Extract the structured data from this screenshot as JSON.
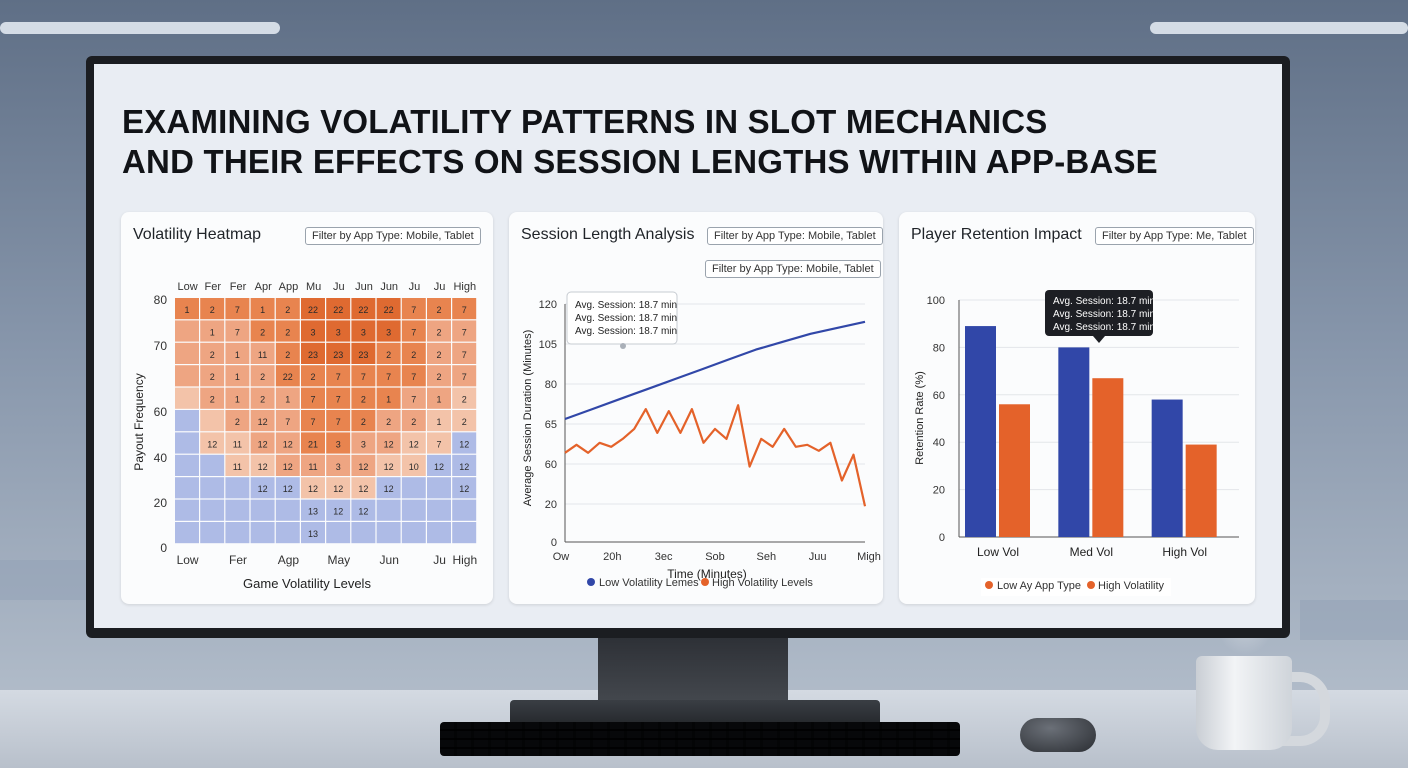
{
  "page": {
    "title_line1": "EXAMINING VOLATILITY PATTERNS IN SLOT MECHANICS",
    "title_line2": "AND THEIR EFFECTS ON SESSION LENGTHS WITHIN APP-BASE"
  },
  "colors": {
    "blue": "#3147a8",
    "orange": "#e4622a",
    "accent_low": "#aebbe6",
    "accent_high": "#e8763b"
  },
  "chart_data": [
    {
      "type": "heatmap",
      "title": "Volatility Heatmap",
      "filter": "Filter by App Type: Mobile, Tablet",
      "xlabel": "Game Volatility Levels",
      "ylabel": "Payout Frequency",
      "x_top": [
        "Low",
        "Fer",
        "Fer",
        "Apr",
        "App",
        "Mu",
        "Ju",
        "Jun",
        "Jun",
        "Ju",
        "Ju",
        "High"
      ],
      "x_bottom": [
        "Low",
        "Fer",
        "Agp",
        "May",
        "Jun",
        "Ju",
        "High"
      ],
      "y_ticks": [
        "80",
        "70",
        "60",
        "40",
        "20",
        "0"
      ],
      "rows": [
        [
          "1",
          "2",
          "7",
          "1",
          "2",
          "22",
          "22",
          "22",
          "22",
          "7",
          "2",
          "7"
        ],
        [
          "",
          "1",
          "7",
          "2",
          "2",
          "3",
          "3",
          "3",
          "3",
          "7",
          "2",
          "7"
        ],
        [
          "",
          "2",
          "1",
          "11",
          "2",
          "23",
          "23",
          "23",
          "2",
          "2",
          "2",
          "7"
        ],
        [
          "",
          "2",
          "1",
          "2",
          "22",
          "2",
          "7",
          "7",
          "7",
          "7",
          "2",
          "7"
        ],
        [
          "",
          "2",
          "1",
          "2",
          "1",
          "7",
          "7",
          "2",
          "1",
          "7",
          "1",
          "2"
        ],
        [
          "",
          "",
          "2",
          "12",
          "7",
          "7",
          "7",
          "2",
          "2",
          "2",
          "1",
          "2"
        ],
        [
          "",
          "12",
          "11",
          "12",
          "12",
          "21",
          "3",
          "3",
          "12",
          "12",
          "7",
          "12"
        ],
        [
          "",
          "",
          "11",
          "12",
          "12",
          "11",
          "3",
          "12",
          "12",
          "10",
          "12",
          "12"
        ],
        [
          "",
          "",
          "",
          "12",
          "12",
          "12",
          "12",
          "12",
          "12",
          "",
          "",
          "12"
        ],
        [
          "",
          "",
          "",
          "",
          "",
          "13",
          "12",
          "12",
          "",
          "",
          "",
          ""
        ],
        [
          "",
          "",
          "",
          "",
          "",
          "13",
          "",
          "",
          "",
          "",
          "",
          ""
        ]
      ],
      "levels": [
        [
          3,
          3,
          3,
          3,
          3,
          4,
          4,
          4,
          4,
          3,
          3,
          3
        ],
        [
          2,
          2,
          2,
          3,
          3,
          4,
          4,
          4,
          4,
          3,
          2,
          2
        ],
        [
          2,
          2,
          2,
          2,
          3,
          4,
          4,
          4,
          3,
          3,
          2,
          2
        ],
        [
          2,
          2,
          2,
          2,
          3,
          3,
          3,
          3,
          3,
          3,
          2,
          2
        ],
        [
          1,
          2,
          2,
          2,
          2,
          3,
          3,
          3,
          3,
          2,
          2,
          1
        ],
        [
          0,
          1,
          2,
          2,
          2,
          3,
          3,
          3,
          2,
          2,
          1,
          1
        ],
        [
          0,
          1,
          1,
          2,
          2,
          3,
          3,
          2,
          2,
          1,
          1,
          0
        ],
        [
          0,
          0,
          1,
          1,
          2,
          2,
          2,
          2,
          1,
          1,
          0,
          0
        ],
        [
          0,
          0,
          0,
          0,
          0,
          1,
          1,
          1,
          0,
          0,
          0,
          0
        ],
        [
          0,
          0,
          0,
          0,
          0,
          0,
          0,
          0,
          0,
          0,
          0,
          0
        ],
        [
          0,
          0,
          0,
          0,
          0,
          0,
          0,
          0,
          0,
          0,
          0,
          0
        ]
      ]
    },
    {
      "type": "line",
      "title": "Session Length Analysis",
      "filter": "Filter by App Type: Mobile, Tablet",
      "filter2": "Filter by App Type: Mobile, Tablet",
      "xlabel": "Time (Minutes)",
      "ylabel": "Average Session Duration (Minutes)",
      "x_ticks": [
        "Ow",
        "20h",
        "3ec",
        "Sob",
        "Seh",
        "Juu",
        "Migh"
      ],
      "y_ticks": [
        "120",
        "105",
        "80",
        "65",
        "60",
        "20",
        "0"
      ],
      "ylim": [
        0,
        120
      ],
      "tooltip": [
        "Avg. Session: 18.7 min",
        "Avg. Session: 18.7 min",
        "Avg. Session: 18.7 min"
      ],
      "series": [
        {
          "name": "Low Volatility Lemes",
          "values": [
            62,
            67,
            72,
            77,
            82,
            87,
            92,
            97,
            101,
            105,
            108,
            111
          ]
        },
        {
          "name": "High Volatility Levels",
          "values": [
            45,
            49,
            45,
            50,
            48,
            52,
            57,
            67,
            55,
            66,
            55,
            67,
            50,
            57,
            52,
            69,
            38,
            52,
            48,
            57,
            48,
            49,
            46,
            50,
            31,
            44,
            18
          ]
        }
      ]
    },
    {
      "type": "bar",
      "title": "Player Retention Impact",
      "filter": "Filter by App Type: Me, Tablet",
      "ylabel": "Retention Rate (%)",
      "categories": [
        "Low Vol",
        "Med Vol",
        "High Vol"
      ],
      "y_ticks": [
        "100",
        "80",
        "60",
        "40",
        "20",
        "0"
      ],
      "ylim": [
        0,
        100
      ],
      "tooltip": [
        "Avg. Session: 18.7 min",
        "Avg. Session: 18.7 min",
        "Avg. Session: 18.7 min"
      ],
      "series": [
        {
          "values": [
            89,
            80,
            58
          ]
        },
        {
          "values": [
            56,
            67,
            39
          ]
        }
      ],
      "legend": [
        "Low Ay App Type",
        "High Volatility"
      ]
    }
  ]
}
